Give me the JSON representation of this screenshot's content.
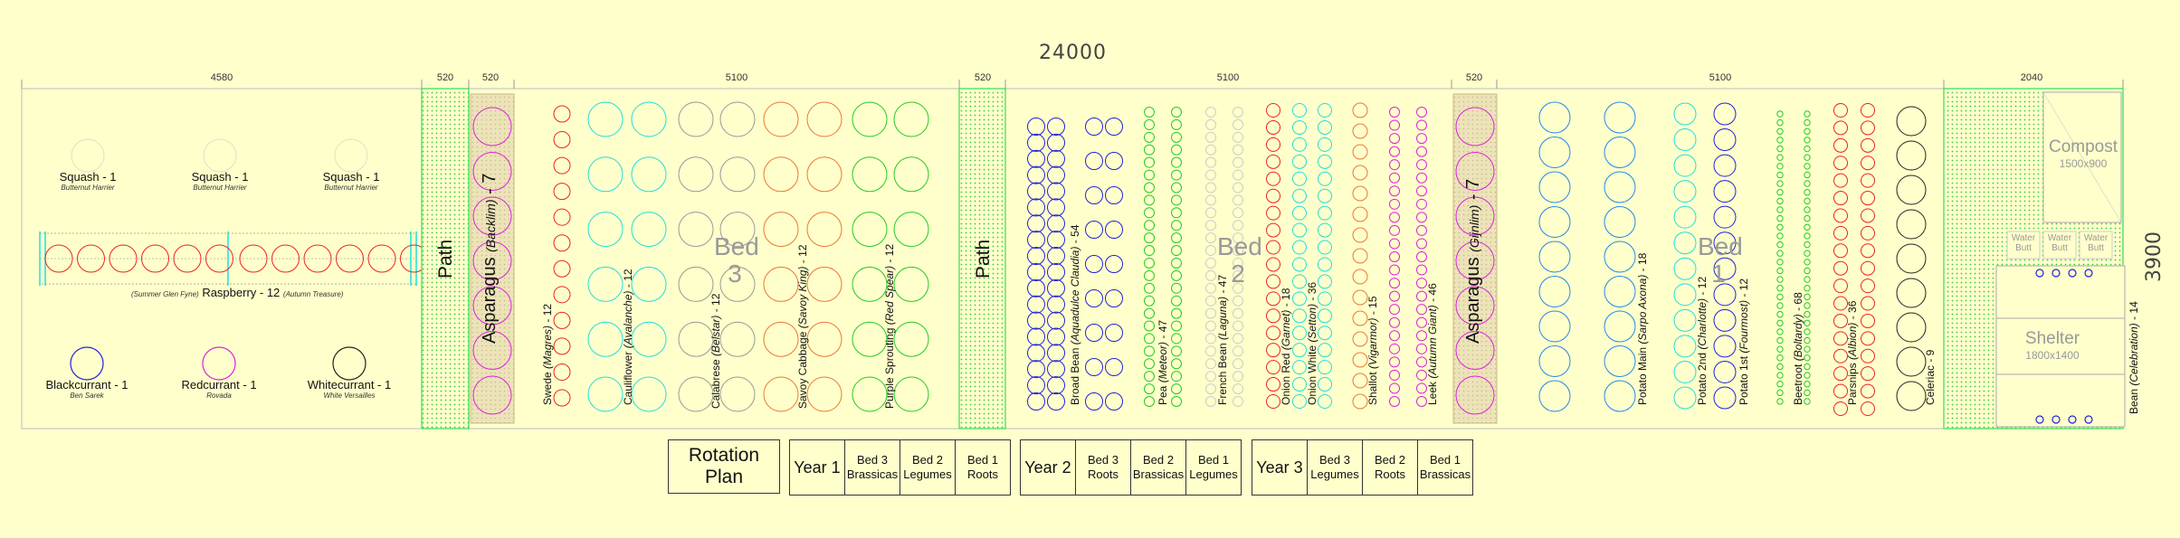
{
  "plan": {
    "total_width": "24000",
    "total_depth": "3900",
    "dimensions": [
      "4580",
      "520",
      "520",
      "5100",
      "520",
      "5100",
      "520",
      "5100",
      "2040"
    ]
  },
  "fruit_area": {
    "squash": [
      {
        "name": "Squash - 1",
        "variety": "Butternut Harrier"
      },
      {
        "name": "Squash - 1",
        "variety": "Butternut Harrier"
      },
      {
        "name": "Squash - 1",
        "variety": "Butternut Harrier"
      }
    ],
    "raspberry": {
      "name": "Raspberry - 12",
      "variety_left": "(Summer Glen Fyne)",
      "variety_right": "(Autumn Treasure)"
    },
    "currants": [
      {
        "name": "Blackcurrant - 1",
        "variety": "Ben Sarek",
        "color": "#2222dd"
      },
      {
        "name": "Redcurrant - 1",
        "variety": "Rovada",
        "color": "#dd22dd"
      },
      {
        "name": "Whitecurrant - 1",
        "variety": "White Versailles",
        "color": "#222222"
      }
    ]
  },
  "paths": [
    {
      "label": "Path"
    },
    {
      "label": "Path"
    }
  ],
  "asparagus": [
    {
      "name": "Asparagus",
      "variety": "(Backlim)",
      "count": "7"
    },
    {
      "name": "Asparagus",
      "variety": "(Gijnlim)",
      "count": "7"
    }
  ],
  "beds": [
    {
      "label": "Bed 3",
      "rows": [
        {
          "name": "Swede",
          "variety": "(Magres)",
          "count": "12",
          "color": "#ee2222"
        },
        {
          "name": "Cauliflower",
          "variety": "(Avalanche)",
          "count": "12",
          "color": "#22dddd"
        },
        {
          "name": "Calabrese",
          "variety": "(Belstar)",
          "count": "12",
          "color": "#999999"
        },
        {
          "name": "Savoy Cabbage",
          "variety": "(Savoy King)",
          "count": "12",
          "color": "#ee7733"
        },
        {
          "name": "Purple Sprouting",
          "variety": "(Red Spear)",
          "count": "12",
          "color": "#22cc22"
        }
      ]
    },
    {
      "label": "Bed 2",
      "rows": [
        {
          "name": "Broad Bean",
          "variety": "(Aquadulce Claudia)",
          "count": "54",
          "color": "#2222dd"
        },
        {
          "name": "Pea",
          "variety": "(Meteor)",
          "count": "47",
          "color": "#22cc22"
        },
        {
          "name": "French Bean",
          "variety": "(Laguna)",
          "count": "47",
          "color": "#cccccc"
        },
        {
          "name": "Onion Red",
          "variety": "(Garnet)",
          "count": "18",
          "color": "#ee2222"
        },
        {
          "name": "Onion White",
          "variety": "(Setton)",
          "count": "36",
          "color": "#22dddd"
        },
        {
          "name": "Shallot",
          "variety": "(Vigarmor)",
          "count": "15",
          "color": "#ee7733"
        },
        {
          "name": "Leek",
          "variety": "(Autumn Giant)",
          "count": "46",
          "color": "#dd22dd"
        }
      ]
    },
    {
      "label": "Bed 1",
      "rows": [
        {
          "name": "Potato Main",
          "variety": "(Sarpo Axona)",
          "count": "18",
          "color": "#2288ee"
        },
        {
          "name": "Potato 2nd",
          "variety": "(Charlotte)",
          "count": "12",
          "color": "#22dddd"
        },
        {
          "name": "Potato 1st",
          "variety": "(Fourmost)",
          "count": "12",
          "color": "#2222dd"
        },
        {
          "name": "Beetroot",
          "variety": "(Boltardy)",
          "count": "68",
          "color": "#22cc22"
        },
        {
          "name": "Parsnips",
          "variety": "(Albion)",
          "count": "36",
          "color": "#ee2222"
        },
        {
          "name": "Celeriac",
          "variety": "",
          "count": "9",
          "color": "#222222"
        }
      ]
    }
  ],
  "utility": {
    "compost": {
      "label": "Compost",
      "size": "1500x900"
    },
    "water_butts": [
      "Water Butt",
      "Water Butt",
      "Water Butt"
    ],
    "shelter": {
      "label": "Shelter",
      "size": "1800x1400"
    },
    "bean": {
      "name": "Bean",
      "variety": "(Celebration)",
      "count": "14",
      "color": "#2222dd"
    }
  },
  "rotation": {
    "title": "Rotation Plan",
    "years": [
      {
        "label": "Year 1",
        "beds": [
          "Bed 3 Brassicas",
          "Bed 2 Legumes",
          "Bed 1 Roots"
        ]
      },
      {
        "label": "Year 2",
        "beds": [
          "Bed 3 Roots",
          "Bed 2 Brassicas",
          "Bed 1 Legumes"
        ]
      },
      {
        "label": "Year 3",
        "beds": [
          "Bed 3 Legumes",
          "Bed 2 Roots",
          "Bed 1 Brassicas"
        ]
      }
    ]
  },
  "colors": {
    "background": "#ffffcc",
    "path_green": "#33dd55",
    "asparagus_fill": "#e8e0b0",
    "border": "#aaaaaa"
  }
}
